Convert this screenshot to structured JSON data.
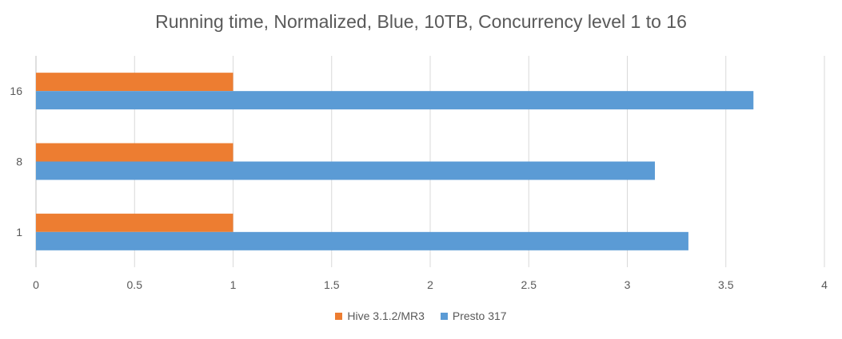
{
  "chart_data": {
    "type": "bar",
    "orientation": "horizontal",
    "title": "Running time, Normalized, Blue, 10TB, Concurrency level 1 to 16",
    "categories": [
      "1",
      "8",
      "16"
    ],
    "series": [
      {
        "name": "Hive 3.1.2/MR3",
        "color": "#ED7D31",
        "values": [
          1,
          1,
          1
        ]
      },
      {
        "name": "Presto 317",
        "color": "#5B9BD5",
        "values": [
          3.31,
          3.14,
          3.64
        ]
      }
    ],
    "xlim": [
      0,
      4
    ],
    "xticks": [
      "0",
      "0.5",
      "1",
      "1.5",
      "2",
      "2.5",
      "3",
      "3.5",
      "4"
    ],
    "grid": true,
    "legend_position": "bottom"
  }
}
